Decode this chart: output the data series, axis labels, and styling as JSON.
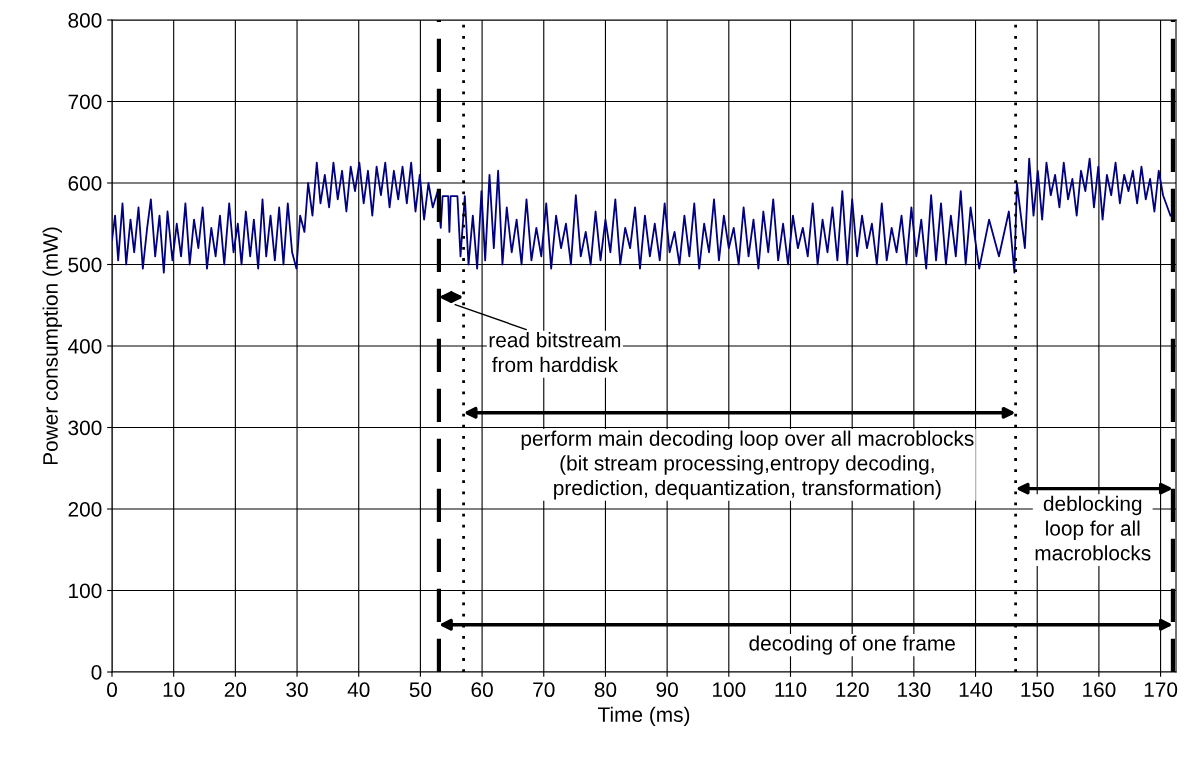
{
  "chart_data": {
    "type": "line",
    "xlabel": "Time (ms)",
    "ylabel": "Power consumption (mW)",
    "x": [
      0,
      0.5,
      1,
      1.7,
      2.3,
      3,
      3.6,
      4.3,
      5,
      5.7,
      6.3,
      7,
      7.7,
      8.4,
      9,
      9.8,
      10.5,
      11.2,
      11.9,
      12.6,
      13.3,
      14,
      14.7,
      15.4,
      16.1,
      16.8,
      17.5,
      18.2,
      19,
      19.7,
      20.4,
      21,
      21.7,
      22.4,
      23,
      23.7,
      24.4,
      25,
      25.7,
      26.4,
      27.1,
      27.8,
      28.5,
      29.2,
      29.9,
      30.5,
      31.2,
      31.8,
      32.5,
      33.2,
      33.8,
      34.5,
      35.2,
      35.9,
      36.6,
      37.3,
      38,
      38.7,
      39.4,
      40.1,
      40.8,
      41.5,
      42.2,
      42.9,
      43.6,
      44.3,
      45,
      45.7,
      46.4,
      47.1,
      47.8,
      48.5,
      49.2,
      49.9,
      50.6,
      51.3,
      52,
      52.8,
      53.3,
      53.6,
      54.5,
      54.7,
      54.9,
      55.8,
      56,
      56.5,
      57.2,
      57.8,
      58.5,
      59.2,
      59.9,
      60.5,
      61.2,
      61.9,
      62.6,
      63.3,
      64,
      64.8,
      65.6,
      66.4,
      67.2,
      68,
      68.8,
      69.6,
      70.4,
      71.2,
      72,
      72.8,
      73.6,
      74.4,
      75.2,
      76,
      76.8,
      77.6,
      78.4,
      79.2,
      80,
      80.8,
      81.6,
      82.4,
      83.2,
      84,
      84.8,
      85.6,
      86.4,
      87.2,
      88,
      88.8,
      89.6,
      90.4,
      91.2,
      92,
      92.8,
      93.6,
      94.4,
      95.2,
      96,
      96.8,
      97.6,
      98.4,
      99.2,
      100,
      100.8,
      101.6,
      102.4,
      103.2,
      104,
      104.8,
      105.6,
      106.4,
      107.2,
      108,
      108.8,
      109.6,
      110.4,
      111.2,
      112,
      112.8,
      113.6,
      114.4,
      115.2,
      116,
      116.8,
      117.6,
      118.4,
      119.2,
      120,
      120.8,
      121.6,
      122.4,
      123.2,
      124,
      124.8,
      125.6,
      126.4,
      127.2,
      128,
      128.8,
      129.6,
      130.4,
      131.2,
      132,
      132.8,
      133.6,
      134.4,
      135.2,
      136,
      136.8,
      137.6,
      138.4,
      139.2,
      140.6,
      142.2,
      143.8,
      145.4,
      146.3,
      146.7,
      148,
      148.7,
      149.4,
      150.1,
      150.8,
      151.5,
      152.2,
      152.9,
      153.6,
      154.3,
      155,
      155.7,
      156.4,
      157.1,
      157.8,
      158.5,
      159.2,
      159.9,
      160.6,
      161.3,
      162,
      162.7,
      163.4,
      164.1,
      164.8,
      165.5,
      166.2,
      166.9,
      167.6,
      168.3,
      169,
      169.7,
      170.4,
      171.6
    ],
    "series": [
      {
        "color": "#000080",
        "values": [
          530,
          560,
          505,
          575,
          500,
          555,
          515,
          570,
          495,
          545,
          580,
          510,
          560,
          490,
          565,
          505,
          550,
          510,
          575,
          500,
          555,
          520,
          570,
          495,
          545,
          510,
          560,
          500,
          575,
          515,
          550,
          500,
          565,
          510,
          555,
          495,
          580,
          510,
          560,
          505,
          570,
          500,
          575,
          515,
          495,
          560,
          540,
          600,
          560,
          625,
          575,
          610,
          570,
          625,
          580,
          615,
          565,
          620,
          590,
          625,
          575,
          615,
          560,
          620,
          585,
          625,
          570,
          615,
          580,
          620,
          575,
          625,
          565,
          610,
          555,
          600,
          570,
          590,
          545,
          584,
          584,
          540,
          584,
          584,
          584,
          510,
          584,
          500,
          560,
          495,
          590,
          505,
          610,
          520,
          615,
          500,
          570,
          515,
          555,
          500,
          580,
          505,
          545,
          510,
          575,
          495,
          560,
          520,
          550,
          500,
          585,
          510,
          540,
          500,
          565,
          505,
          555,
          515,
          580,
          500,
          545,
          520,
          570,
          495,
          560,
          510,
          550,
          505,
          575,
          515,
          540,
          500,
          560,
          510,
          575,
          495,
          550,
          515,
          580,
          505,
          560,
          520,
          545,
          500,
          570,
          510,
          555,
          495,
          565,
          515,
          580,
          505,
          550,
          500,
          560,
          520,
          545,
          510,
          575,
          500,
          555,
          515,
          570,
          505,
          590,
          500,
          580,
          510,
          560,
          520,
          550,
          500,
          575,
          505,
          545,
          515,
          560,
          500,
          570,
          510,
          555,
          495,
          585,
          505,
          575,
          500,
          560,
          510,
          590,
          500,
          570,
          495,
          555,
          510,
          565,
          490,
          600,
          520,
          630,
          560,
          615,
          555,
          625,
          585,
          610,
          570,
          625,
          580,
          605,
          560,
          615,
          590,
          630,
          570,
          620,
          555,
          610,
          585,
          625,
          575,
          610,
          590,
          615,
          575,
          620,
          580,
          605,
          565,
          615,
          585,
          560
        ]
      }
    ],
    "xlim": [
      0,
      172.5
    ],
    "ylim": [
      0,
      800
    ],
    "xticks": [
      0,
      10,
      20,
      30,
      40,
      50,
      60,
      70,
      80,
      90,
      100,
      110,
      120,
      130,
      140,
      150,
      160,
      170
    ],
    "yticks": [
      0,
      100,
      200,
      300,
      400,
      500,
      600,
      700,
      800
    ],
    "grid": true,
    "marker": "none",
    "line_style": "solid",
    "ref_lines": [
      {
        "axis": "x",
        "value": 53,
        "color": "#000000",
        "line_style": "dashed"
      },
      {
        "axis": "x",
        "value": 57,
        "color": "#000000",
        "line_style": "dotted"
      },
      {
        "axis": "x",
        "value": 146.5,
        "color": "#000000",
        "line_style": "dotted"
      },
      {
        "axis": "x",
        "value": 172,
        "color": "#000000",
        "line_style": "dashed"
      }
    ],
    "annotations": [
      "read bitstream\nfrom harddisk",
      "perform main decoding loop over all macroblocks\n(bit stream processing,entropy decoding,\nprediction, dequantization, transformation)",
      "deblocking\nloop for all\nmacroblocks",
      "decoding of one frame"
    ]
  }
}
